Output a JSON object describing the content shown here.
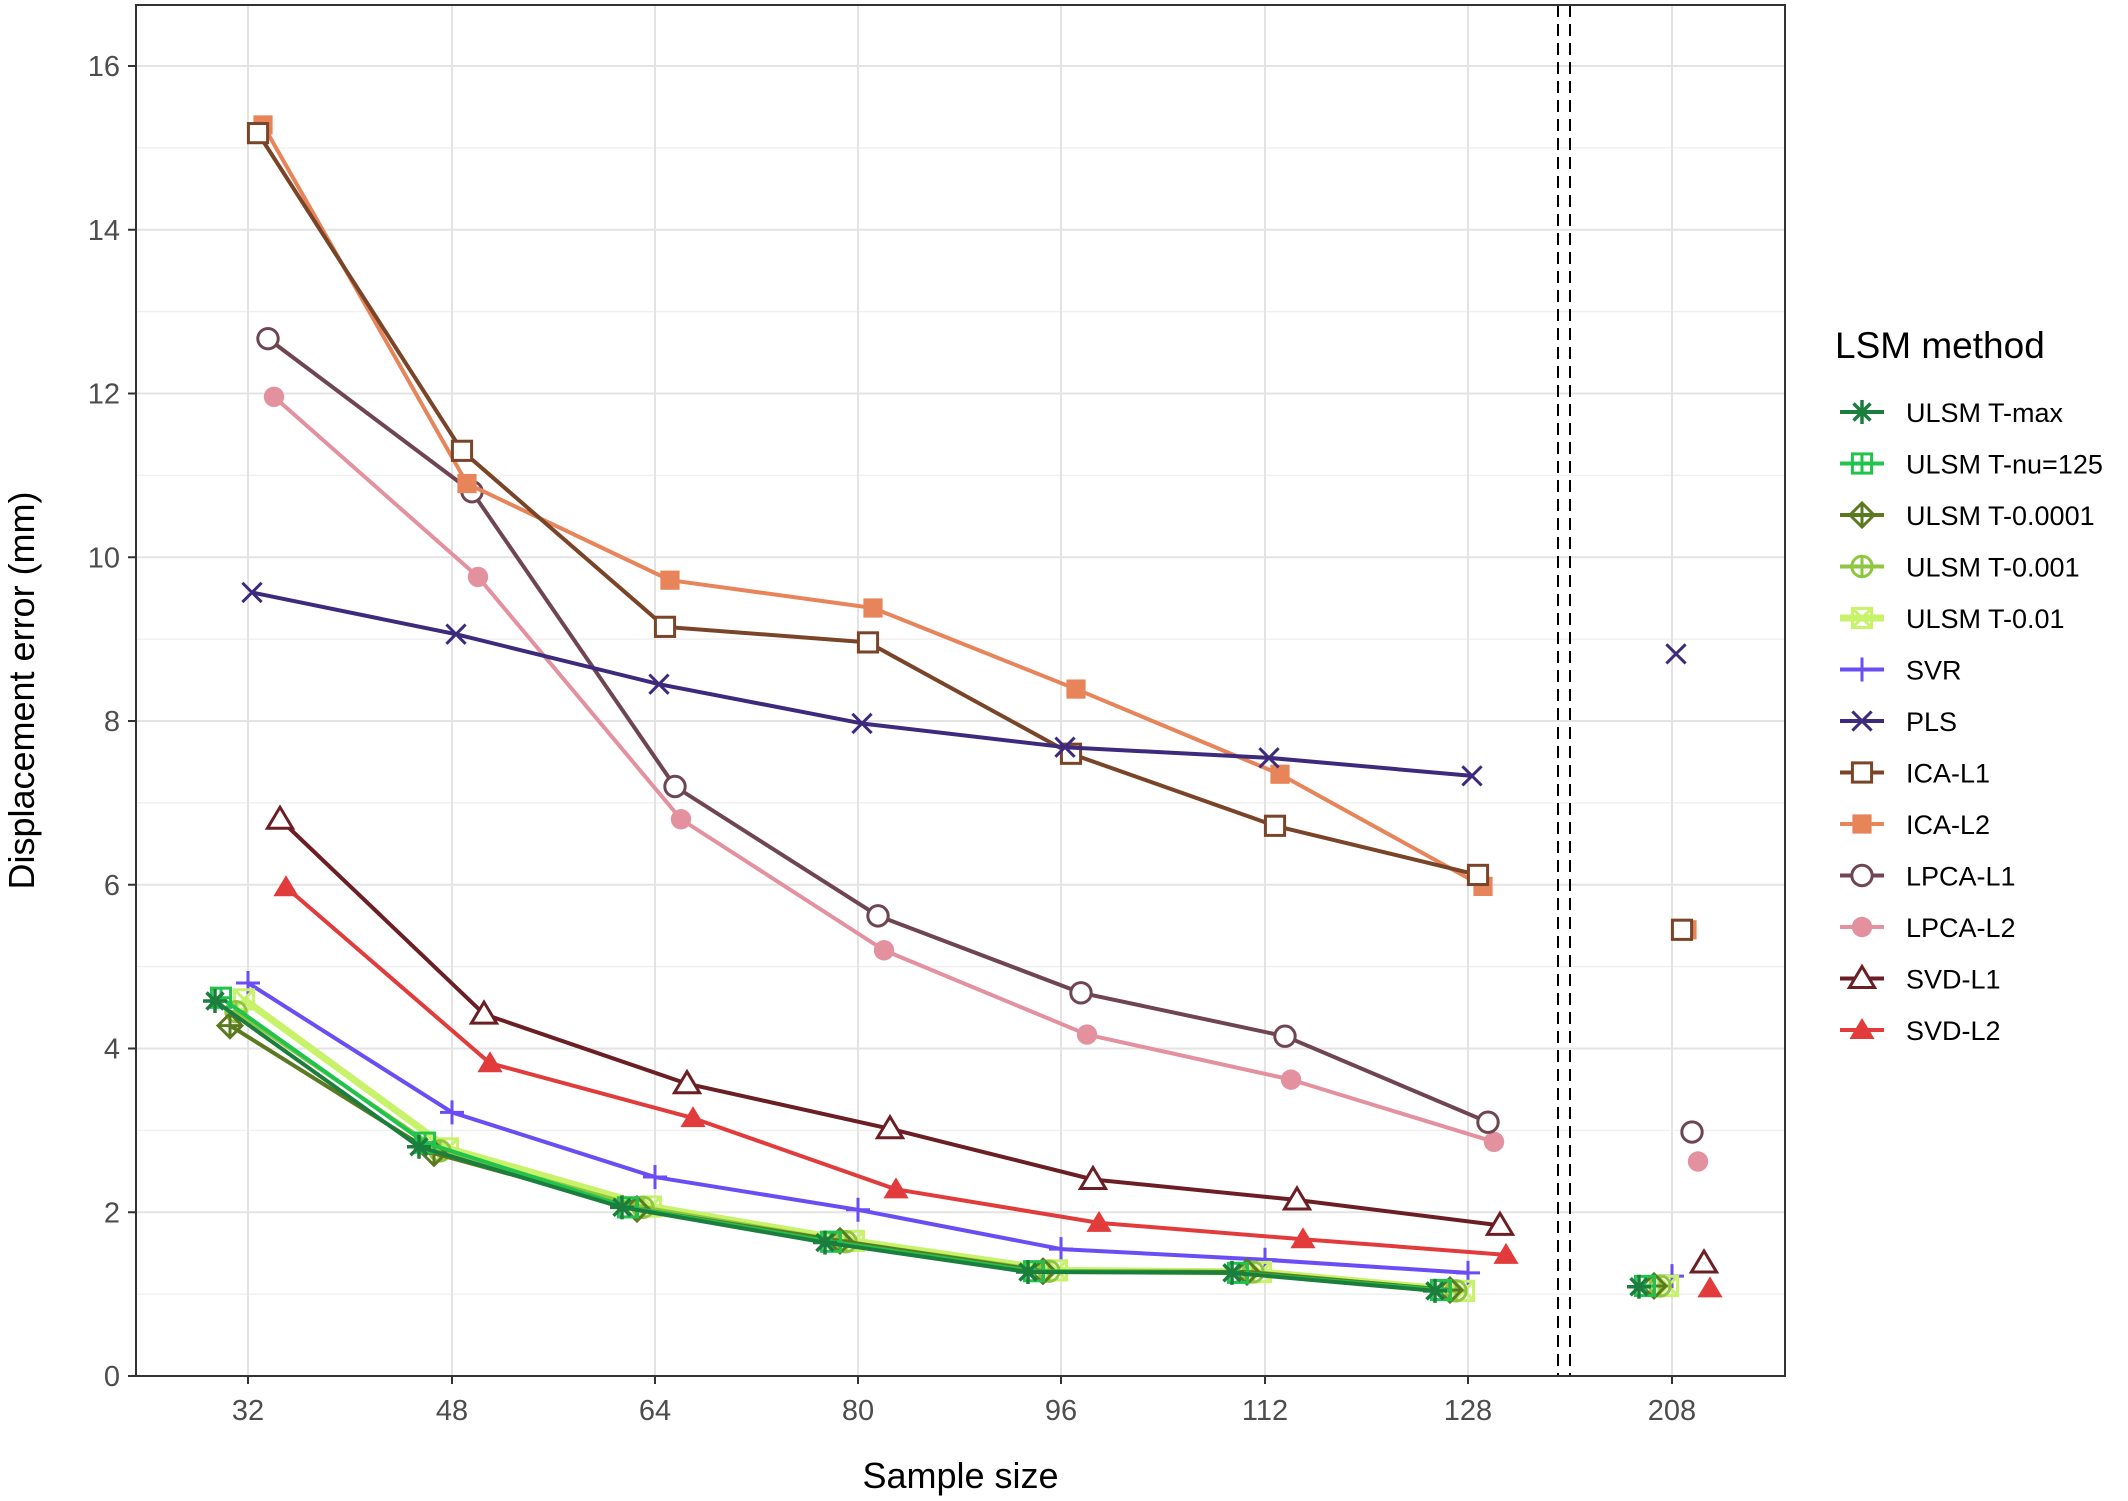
{
  "chart_data": {
    "type": "line",
    "xlabel": "Sample size",
    "ylabel": "Displacement error (mm)",
    "x": [
      32,
      48,
      64,
      80,
      96,
      112,
      128,
      208
    ],
    "x_tick_labels": [
      "32",
      "48",
      "64",
      "80",
      "96",
      "112",
      "128",
      "208"
    ],
    "y_tick_labels": [
      "0",
      "2",
      "4",
      "6",
      "8",
      "10",
      "12",
      "14",
      "16"
    ],
    "ylim": [
      0,
      16.6
    ],
    "grid": true,
    "separator": "dashed vertical lines between 128 and 208",
    "legend": {
      "title": "LSM method",
      "placement": "right"
    },
    "series": [
      {
        "name": "ULSM T-max",
        "color": "#1b7e3d",
        "marker": "asterisk",
        "values": [
          4.58,
          2.8,
          2.06,
          1.63,
          1.27,
          1.26,
          1.04,
          1.09
        ]
      },
      {
        "name": "ULSM T-nu=125",
        "color": "#22c34d",
        "marker": "square-cross",
        "values": [
          4.62,
          2.85,
          2.06,
          1.64,
          1.28,
          1.26,
          1.05,
          1.1
        ]
      },
      {
        "name": "ULSM T-0.0001",
        "color": "#5b7a20",
        "marker": "diamond-plus",
        "values": [
          4.28,
          2.72,
          2.04,
          1.65,
          1.28,
          1.27,
          1.05,
          1.1
        ]
      },
      {
        "name": "ULSM T-0.001",
        "color": "#8ec63f",
        "marker": "circle-plus",
        "values": [
          4.45,
          2.75,
          2.06,
          1.64,
          1.28,
          1.27,
          1.04,
          1.1
        ]
      },
      {
        "name": "ULSM T-0.01",
        "color": "#c7f26a",
        "marker": "square-x",
        "values": [
          4.6,
          2.78,
          2.07,
          1.65,
          1.29,
          1.27,
          1.04,
          1.1
        ]
      },
      {
        "name": "SVR",
        "color": "#6a4df5",
        "marker": "plus",
        "values": [
          4.8,
          3.22,
          2.43,
          2.03,
          1.55,
          1.42,
          1.26,
          1.22
        ]
      },
      {
        "name": "PLS",
        "color": "#3d2a7d",
        "marker": "cross",
        "values": [
          9.57,
          9.06,
          8.45,
          7.97,
          7.68,
          7.55,
          7.33,
          8.82
        ]
      },
      {
        "name": "ICA-L1",
        "color": "#7a4428",
        "marker": "open-square",
        "values": [
          15.18,
          11.3,
          9.15,
          8.96,
          7.6,
          6.72,
          6.12,
          5.45
        ]
      },
      {
        "name": "ICA-L2",
        "color": "#e8845a",
        "marker": "filled-square",
        "values": [
          15.28,
          10.9,
          9.72,
          9.38,
          8.39,
          7.35,
          5.98,
          5.45
        ]
      },
      {
        "name": "LPCA-L1",
        "color": "#6e4550",
        "marker": "open-circle",
        "values": [
          12.67,
          10.8,
          7.2,
          5.62,
          4.68,
          4.15,
          3.1,
          2.98
        ]
      },
      {
        "name": "LPCA-L2",
        "color": "#e3909f",
        "marker": "filled-circle",
        "values": [
          11.96,
          9.76,
          6.8,
          5.2,
          4.17,
          3.62,
          2.86,
          2.62
        ]
      },
      {
        "name": "SVD-L1",
        "color": "#6b1e24",
        "marker": "open-triangle",
        "values": [
          6.8,
          4.42,
          3.57,
          3.02,
          2.4,
          2.15,
          1.84,
          1.38
        ]
      },
      {
        "name": "SVD-L2",
        "color": "#e23b3b",
        "marker": "filled-triangle",
        "values": [
          5.97,
          3.82,
          3.15,
          2.28,
          1.87,
          1.67,
          1.48,
          1.07
        ]
      }
    ]
  }
}
